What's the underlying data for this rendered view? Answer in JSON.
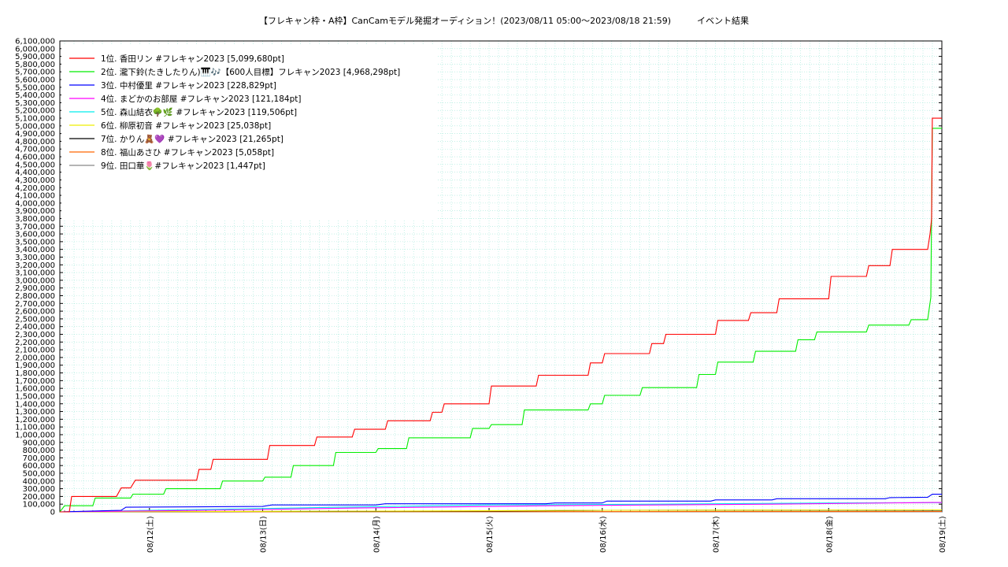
{
  "chart_data": {
    "type": "line",
    "title": "【フレキャン枠・A枠】CanCamモデル発掘オーディション！(2023/08/11 05:00～2023/08/18 21:59)　　　イベント結果",
    "xlabel": "",
    "ylabel": "",
    "x_range": [
      "2023-08-11 05:00",
      "2023-08-19 00:00"
    ],
    "ylim": [
      0,
      6100000
    ],
    "y_tick_step": 100000,
    "x_ticks": [
      "08/12(土)",
      "08/13(日)",
      "08/14(月)",
      "08/15(火)",
      "08/16(水)",
      "08/17(木)",
      "08/18(金)",
      "08/19(土)"
    ],
    "grid": true,
    "legend_position": "top-left",
    "series": [
      {
        "name": "1位. 香田リン #フレキャン2023 [5,099,680pt]",
        "color": "#ff0000",
        "points": [
          [
            "2023-08-11 05:00",
            0
          ],
          [
            "2023-08-11 07:00",
            0
          ],
          [
            "2023-08-11 07:30",
            200000
          ],
          [
            "2023-08-11 17:00",
            200000
          ],
          [
            "2023-08-11 18:00",
            310000
          ],
          [
            "2023-08-11 20:00",
            310000
          ],
          [
            "2023-08-11 21:00",
            410000
          ],
          [
            "2023-08-12 10:00",
            410000
          ],
          [
            "2023-08-12 10:30",
            550000
          ],
          [
            "2023-08-12 13:00",
            550000
          ],
          [
            "2023-08-12 13:30",
            680000
          ],
          [
            "2023-08-13 01:00",
            680000
          ],
          [
            "2023-08-13 01:30",
            860000
          ],
          [
            "2023-08-13 11:00",
            860000
          ],
          [
            "2023-08-13 11:30",
            970000
          ],
          [
            "2023-08-13 19:00",
            970000
          ],
          [
            "2023-08-13 19:30",
            1070000
          ],
          [
            "2023-08-14 02:00",
            1070000
          ],
          [
            "2023-08-14 02:30",
            1180000
          ],
          [
            "2023-08-14 11:30",
            1180000
          ],
          [
            "2023-08-14 12:00",
            1290000
          ],
          [
            "2023-08-14 14:00",
            1290000
          ],
          [
            "2023-08-14 14:30",
            1400000
          ],
          [
            "2023-08-15 00:00",
            1400000
          ],
          [
            "2023-08-15 00:30",
            1630000
          ],
          [
            "2023-08-15 10:00",
            1630000
          ],
          [
            "2023-08-15 10:30",
            1770000
          ],
          [
            "2023-08-15 21:00",
            1770000
          ],
          [
            "2023-08-15 21:30",
            1930000
          ],
          [
            "2023-08-16 00:00",
            1930000
          ],
          [
            "2023-08-16 00:30",
            2050000
          ],
          [
            "2023-08-16 10:00",
            2050000
          ],
          [
            "2023-08-16 10:30",
            2180000
          ],
          [
            "2023-08-16 13:00",
            2180000
          ],
          [
            "2023-08-16 13:30",
            2300000
          ],
          [
            "2023-08-17 00:00",
            2300000
          ],
          [
            "2023-08-17 00:30",
            2480000
          ],
          [
            "2023-08-17 07:00",
            2480000
          ],
          [
            "2023-08-17 07:30",
            2580000
          ],
          [
            "2023-08-17 13:00",
            2580000
          ],
          [
            "2023-08-17 13:30",
            2760000
          ],
          [
            "2023-08-18 00:00",
            2760000
          ],
          [
            "2023-08-18 00:30",
            3050000
          ],
          [
            "2023-08-18 08:00",
            3050000
          ],
          [
            "2023-08-18 08:30",
            3190000
          ],
          [
            "2023-08-18 13:00",
            3190000
          ],
          [
            "2023-08-18 13:30",
            3400000
          ],
          [
            "2023-08-18 21:00",
            3400000
          ],
          [
            "2023-08-18 21:30",
            3600000
          ],
          [
            "2023-08-18 21:50",
            3800000
          ],
          [
            "2023-08-18 21:59",
            5099680
          ],
          [
            "2023-08-19 00:00",
            5099680
          ]
        ]
      },
      {
        "name": "2位. 瀧下鈴(たきしたりん)🎹🎶【600人目標】フレキャン2023 [4,968,298pt]",
        "color": "#00ee00",
        "points": [
          [
            "2023-08-11 05:00",
            0
          ],
          [
            "2023-08-11 06:00",
            80000
          ],
          [
            "2023-08-11 12:00",
            80000
          ],
          [
            "2023-08-11 12:30",
            180000
          ],
          [
            "2023-08-11 20:00",
            180000
          ],
          [
            "2023-08-11 20:30",
            230000
          ],
          [
            "2023-08-12 03:00",
            230000
          ],
          [
            "2023-08-12 03:30",
            300000
          ],
          [
            "2023-08-12 15:00",
            300000
          ],
          [
            "2023-08-12 15:30",
            400000
          ],
          [
            "2023-08-13 00:00",
            400000
          ],
          [
            "2023-08-13 00:30",
            450000
          ],
          [
            "2023-08-13 06:00",
            450000
          ],
          [
            "2023-08-13 06:30",
            600000
          ],
          [
            "2023-08-13 15:00",
            600000
          ],
          [
            "2023-08-13 15:30",
            770000
          ],
          [
            "2023-08-14 00:00",
            770000
          ],
          [
            "2023-08-14 00:30",
            820000
          ],
          [
            "2023-08-14 06:30",
            820000
          ],
          [
            "2023-08-14 07:00",
            960000
          ],
          [
            "2023-08-14 20:00",
            960000
          ],
          [
            "2023-08-14 20:30",
            1080000
          ],
          [
            "2023-08-15 00:00",
            1080000
          ],
          [
            "2023-08-15 00:30",
            1130000
          ],
          [
            "2023-08-15 07:00",
            1130000
          ],
          [
            "2023-08-15 07:30",
            1320000
          ],
          [
            "2023-08-15 21:00",
            1320000
          ],
          [
            "2023-08-15 21:30",
            1400000
          ],
          [
            "2023-08-16 00:00",
            1400000
          ],
          [
            "2023-08-16 00:30",
            1510000
          ],
          [
            "2023-08-16 08:00",
            1510000
          ],
          [
            "2023-08-16 08:30",
            1610000
          ],
          [
            "2023-08-16 20:00",
            1610000
          ],
          [
            "2023-08-16 20:30",
            1780000
          ],
          [
            "2023-08-17 00:00",
            1780000
          ],
          [
            "2023-08-17 00:30",
            1940000
          ],
          [
            "2023-08-17 08:00",
            1940000
          ],
          [
            "2023-08-17 08:30",
            2080000
          ],
          [
            "2023-08-17 17:00",
            2080000
          ],
          [
            "2023-08-17 17:30",
            2230000
          ],
          [
            "2023-08-17 21:00",
            2230000
          ],
          [
            "2023-08-17 21:30",
            2330000
          ],
          [
            "2023-08-18 08:00",
            2330000
          ],
          [
            "2023-08-18 08:30",
            2420000
          ],
          [
            "2023-08-18 17:00",
            2420000
          ],
          [
            "2023-08-18 17:30",
            2490000
          ],
          [
            "2023-08-18 21:00",
            2490000
          ],
          [
            "2023-08-18 21:40",
            2780000
          ],
          [
            "2023-08-18 21:59",
            4968298
          ],
          [
            "2023-08-19 00:00",
            4968298
          ]
        ]
      },
      {
        "name": "3位. 中村優里 #フレキャン2023 [228,829pt]",
        "color": "#0000ff",
        "points": [
          [
            "2023-08-11 05:00",
            0
          ],
          [
            "2023-08-11 18:00",
            20000
          ],
          [
            "2023-08-11 19:00",
            60000
          ],
          [
            "2023-08-13 00:00",
            70000
          ],
          [
            "2023-08-13 02:00",
            90000
          ],
          [
            "2023-08-14 00:00",
            90000
          ],
          [
            "2023-08-14 02:00",
            105000
          ],
          [
            "2023-08-15 12:00",
            105000
          ],
          [
            "2023-08-15 14:00",
            115000
          ],
          [
            "2023-08-16 00:00",
            115000
          ],
          [
            "2023-08-16 01:00",
            140000
          ],
          [
            "2023-08-16 23:00",
            140000
          ],
          [
            "2023-08-17 00:00",
            155000
          ],
          [
            "2023-08-17 12:00",
            155000
          ],
          [
            "2023-08-17 13:00",
            170000
          ],
          [
            "2023-08-18 12:00",
            170000
          ],
          [
            "2023-08-18 13:00",
            185000
          ],
          [
            "2023-08-18 21:00",
            190000
          ],
          [
            "2023-08-18 21:59",
            228829
          ],
          [
            "2023-08-19 00:00",
            228829
          ]
        ]
      },
      {
        "name": "4位. まどかのお部屋 #フレキャン2023 [121,184pt]",
        "color": "#ff00ff",
        "points": [
          [
            "2023-08-11 05:00",
            0
          ],
          [
            "2023-08-12 12:00",
            20000
          ],
          [
            "2023-08-13 20:00",
            50000
          ],
          [
            "2023-08-15 12:00",
            80000
          ],
          [
            "2023-08-17 12:00",
            100000
          ],
          [
            "2023-08-18 21:59",
            121184
          ],
          [
            "2023-08-19 00:00",
            121184
          ]
        ]
      },
      {
        "name": "5位. 森山結衣🌳🌿 #フレキャン2023 [119,506pt]",
        "color": "#00eeee",
        "points": [
          [
            "2023-08-11 05:00",
            0
          ],
          [
            "2023-08-12 10:00",
            30000
          ],
          [
            "2023-08-13 16:00",
            60000
          ],
          [
            "2023-08-15 00:00",
            90000
          ],
          [
            "2023-08-16 12:00",
            100000
          ],
          [
            "2023-08-18 00:00",
            115000
          ],
          [
            "2023-08-18 21:59",
            119506
          ],
          [
            "2023-08-19 00:00",
            119506
          ]
        ]
      },
      {
        "name": "6位. 柳原初音 #フレキャン2023 [25,038pt]",
        "color": "#eeee00",
        "points": [
          [
            "2023-08-11 05:00",
            0
          ],
          [
            "2023-08-14 00:00",
            10000
          ],
          [
            "2023-08-16 00:00",
            20000
          ],
          [
            "2023-08-18 21:59",
            25038
          ],
          [
            "2023-08-19 00:00",
            25038
          ]
        ]
      },
      {
        "name": "7位. かりん🧸💜 #フレキャン2023 [21,265pt]",
        "color": "#000000",
        "points": [
          [
            "2023-08-11 05:00",
            0
          ],
          [
            "2023-08-13 00:00",
            5000
          ],
          [
            "2023-08-15 00:00",
            10000
          ],
          [
            "2023-08-16 00:00",
            20000
          ],
          [
            "2023-08-18 21:59",
            21265
          ],
          [
            "2023-08-19 00:00",
            21265
          ]
        ]
      },
      {
        "name": "8位. 福山あさひ #フレキャン2023 [5,058pt]",
        "color": "#ff6600",
        "points": [
          [
            "2023-08-11 05:00",
            0
          ],
          [
            "2023-08-15 00:00",
            3000
          ],
          [
            "2023-08-18 21:59",
            5058
          ],
          [
            "2023-08-19 00:00",
            5058
          ]
        ]
      },
      {
        "name": "9位. 田口華🌷#フレキャン2023 [1,447pt]",
        "color": "#888888",
        "points": [
          [
            "2023-08-11 05:00",
            0
          ],
          [
            "2023-08-14 00:00",
            800
          ],
          [
            "2023-08-18 21:59",
            1447
          ],
          [
            "2023-08-19 00:00",
            1447
          ]
        ]
      }
    ]
  }
}
